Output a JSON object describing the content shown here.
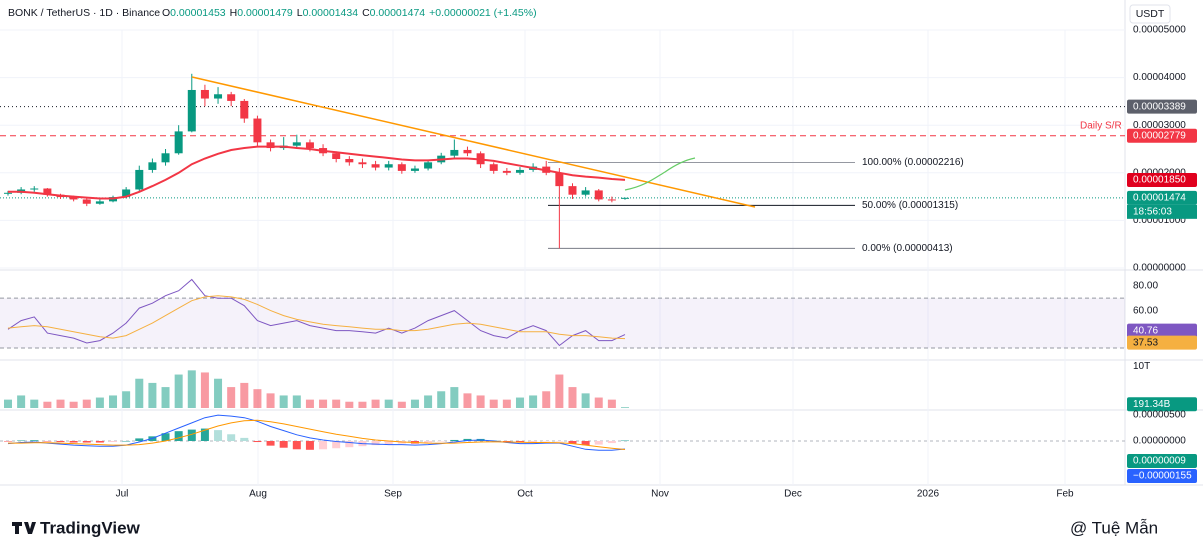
{
  "header": {
    "symbol": "BONK / TetherUS · 1D · Binance",
    "ohlc": [
      {
        "k": "O",
        "v": "0.00001453"
      },
      {
        "k": "H",
        "v": "0.00001479"
      },
      {
        "k": "L",
        "v": "0.00001434"
      },
      {
        "k": "C",
        "v": "0.00001474"
      }
    ],
    "change": "+0.00000021 (+1.45%)"
  },
  "currency": "USDT",
  "time_axis": [
    "Jul",
    "Aug",
    "Sep",
    "Oct",
    "Nov",
    "Dec",
    "2026",
    "Feb"
  ],
  "footer": {
    "logo": "TradingView",
    "watermark": "@ Tuệ Mẫn"
  },
  "chart_data": [
    {
      "type": "candlestick",
      "up_color": "#089981",
      "down_color": "#f23645",
      "open": [
        1.58e-05,
        1.58e-05,
        1.65e-05,
        1.67e-05,
        1.54e-05,
        1.49e-05,
        1.44e-05,
        1.35e-05,
        1.4e-05,
        1.49e-05,
        1.65e-05,
        2.06e-05,
        2.22e-05,
        2.41e-05,
        2.87e-05,
        3.74e-05,
        3.56e-05,
        3.65e-05,
        3.51e-05,
        3.14e-05,
        2.64e-05,
        2.52e-05,
        2.57e-05,
        2.64e-05,
        2.52e-05,
        2.41e-05,
        2.29e-05,
        2.22e-05,
        2.18e-05,
        2.11e-05,
        2.18e-05,
        2.04e-05,
        2.09e-05,
        2.22e-05,
        2.36e-05,
        2.48e-05,
        2.41e-05,
        2.18e-05,
        2.04e-05,
        2e-05,
        2.06e-05,
        2.13e-05,
        2e-05,
        1.72e-05,
        1.54e-05,
        1.63e-05,
        1.44e-05,
        1.453e-05
      ],
      "high": [
        1.62e-05,
        1.7e-05,
        1.72e-05,
        1.68e-05,
        1.56e-05,
        1.52e-05,
        1.46e-05,
        1.44e-05,
        1.52e-05,
        1.7e-05,
        2.15e-05,
        2.3e-05,
        2.5e-05,
        3e-05,
        4.08e-05,
        3.85e-05,
        3.8e-05,
        3.7e-05,
        3.55e-05,
        3.2e-05,
        2.7e-05,
        2.75e-05,
        2.8e-05,
        2.7e-05,
        2.6e-05,
        2.45e-05,
        2.35e-05,
        2.3e-05,
        2.25e-05,
        2.25e-05,
        2.22e-05,
        2.15e-05,
        2.28e-05,
        2.42e-05,
        2.7e-05,
        2.55e-05,
        2.45e-05,
        2.22e-05,
        2.1e-05,
        2.12e-05,
        2.2e-05,
        2.25e-05,
        2.1e-05,
        1.78e-05,
        1.7e-05,
        1.66e-05,
        1.5e-05,
        1.479e-05
      ],
      "low": [
        1.52e-05,
        1.55e-05,
        1.6e-05,
        1.5e-05,
        1.45e-05,
        1.4e-05,
        1.3e-05,
        1.33e-05,
        1.38e-05,
        1.46e-05,
        1.62e-05,
        2e-05,
        2.15e-05,
        2.38e-05,
        2.85e-05,
        3.4e-05,
        3.45e-05,
        3.4e-05,
        3.05e-05,
        2.55e-05,
        2.45e-05,
        2.48e-05,
        2.5e-05,
        2.45e-05,
        2.35e-05,
        2.22e-05,
        2.15e-05,
        2.1e-05,
        2.05e-05,
        2.05e-05,
        1.98e-05,
        2e-05,
        2.05e-05,
        2.18e-05,
        2.3e-05,
        2.35e-05,
        2.1e-05,
        1.98e-05,
        1.95e-05,
        1.96e-05,
        2.02e-05,
        1.95e-05,
        4.13e-06,
        1.45e-05,
        1.5e-05,
        1.4e-05,
        1.38e-05,
        1.434e-05
      ],
      "close": [
        1.58e-05,
        1.65e-05,
        1.67e-05,
        1.54e-05,
        1.49e-05,
        1.44e-05,
        1.35e-05,
        1.4e-05,
        1.49e-05,
        1.65e-05,
        2.06e-05,
        2.22e-05,
        2.41e-05,
        2.87e-05,
        3.74e-05,
        3.56e-05,
        3.65e-05,
        3.51e-05,
        3.14e-05,
        2.64e-05,
        2.52e-05,
        2.57e-05,
        2.64e-05,
        2.52e-05,
        2.41e-05,
        2.29e-05,
        2.22e-05,
        2.18e-05,
        2.11e-05,
        2.18e-05,
        2.04e-05,
        2.09e-05,
        2.22e-05,
        2.36e-05,
        2.48e-05,
        2.41e-05,
        2.18e-05,
        2.04e-05,
        2e-05,
        2.06e-05,
        2.13e-05,
        2e-05,
        1.72e-05,
        1.54e-05,
        1.63e-05,
        1.44e-05,
        1.42e-05,
        1.474e-05
      ],
      "ma": {
        "color": "#f23645",
        "values": [
          1.6e-05,
          1.6e-05,
          1.58e-05,
          1.55e-05,
          1.52e-05,
          1.5e-05,
          1.48e-05,
          1.46e-05,
          1.46e-05,
          1.5e-05,
          1.6e-05,
          1.72e-05,
          1.85e-05,
          2e-05,
          2.18e-05,
          2.3e-05,
          2.4e-05,
          2.48e-05,
          2.52e-05,
          2.55e-05,
          2.55e-05,
          2.55e-05,
          2.52e-05,
          2.5e-05,
          2.46e-05,
          2.43e-05,
          2.4e-05,
          2.37e-05,
          2.34e-05,
          2.31e-05,
          2.28e-05,
          2.26e-05,
          2.26e-05,
          2.28e-05,
          2.3e-05,
          2.3e-05,
          2.28e-05,
          2.25e-05,
          2.2e-05,
          2.15e-05,
          2.1e-05,
          2.05e-05,
          2e-05,
          1.95e-05,
          1.92e-05,
          1.9e-05,
          1.87e-05,
          1.85e-05
        ]
      },
      "ylim": [
        0,
        5e-05
      ],
      "yticks": [
        {
          "value": 5e-05,
          "label": "0.00005000"
        },
        {
          "value": 4e-05,
          "label": "0.00004000"
        },
        {
          "value": 3e-05,
          "label": "0.00003000"
        },
        {
          "value": 2e-05,
          "label": "0.00002000"
        },
        {
          "value": 1e-05,
          "label": "0.00001000"
        },
        {
          "value": 0,
          "label": "0.00000000"
        }
      ],
      "grid": true,
      "levels": [
        {
          "value": 3.389e-05,
          "color": "#131722",
          "dash": "1 3"
        },
        {
          "value": 2.779e-05,
          "color": "#f23645",
          "dash": "6 4"
        }
      ],
      "annotation": "Daily S/R",
      "fib": [
        {
          "value": 2.216e-05,
          "label": "100.00% (0.00002216)",
          "color": "#9598a1"
        },
        {
          "value": 1.315e-05,
          "label": "50.00% (0.00001315)",
          "color": "#131722"
        },
        {
          "value": 4.13e-06,
          "label": "0.00% (0.00000413)",
          "color": "#787b86"
        }
      ],
      "tags": [
        {
          "value": 3.389e-05,
          "label": "0.00003389",
          "color": "#5d606b"
        },
        {
          "value": 2.779e-05,
          "label": "0.00002779",
          "color": "#f23645"
        },
        {
          "value": 1.85e-05,
          "label": "0.00001850",
          "color": "#e0001e"
        },
        {
          "value": 1.474e-05,
          "label": "0.00001474",
          "color": "#089981"
        }
      ],
      "countdown": "18:56:03"
    },
    {
      "type": "line",
      "ylim": [
        22,
        91
      ],
      "yticks": [
        {
          "value": 80,
          "label": "80.00"
        },
        {
          "value": 60,
          "label": "60.00"
        }
      ],
      "band": [
        70,
        30
      ],
      "series": [
        {
          "color": "#7e57c2",
          "values": [
            45,
            52,
            55,
            42,
            40,
            38,
            34,
            36,
            42,
            50,
            62,
            66,
            72,
            76,
            85,
            72,
            70,
            70,
            64,
            52,
            48,
            50,
            52,
            48,
            46,
            44,
            44,
            43,
            42,
            46,
            42,
            46,
            52,
            56,
            60,
            52,
            44,
            40,
            38,
            44,
            48,
            44,
            32,
            40,
            44,
            36,
            36,
            40.76
          ]
        },
        {
          "color": "#f5b041",
          "values": [
            46,
            47,
            48,
            47,
            45,
            43,
            41,
            39,
            38,
            40,
            45,
            50,
            56,
            62,
            68,
            71,
            72,
            71,
            69,
            65,
            60,
            56,
            53,
            51,
            49,
            48,
            47,
            46,
            45,
            45,
            44,
            44,
            45,
            47,
            49,
            50,
            49,
            47,
            45,
            43,
            43,
            43,
            41,
            40,
            40,
            39,
            38,
            37.53
          ]
        }
      ]
    },
    {
      "type": "bar",
      "ylim": [
        0,
        11000000000000
      ],
      "yticks": [
        {
          "value": 10000000000000,
          "label": "10T"
        }
      ],
      "values": [
        2000000000000.0,
        3000000000000.0,
        2000000000000.0,
        1500000000000.0,
        2000000000000.0,
        1500000000000.0,
        2000000000000.0,
        2500000000000.0,
        3000000000000.0,
        4000000000000.0,
        7000000000000.0,
        6000000000000.0,
        5000000000000.0,
        8000000000000.0,
        9000000000000.0,
        8500000000000.0,
        7000000000000.0,
        5000000000000.0,
        6000000000000.0,
        4500000000000.0,
        3500000000000.0,
        3000000000000.0,
        3000000000000.0,
        2000000000000.0,
        2000000000000.0,
        2000000000000.0,
        1500000000000.0,
        1500000000000.0,
        2000000000000.0,
        2000000000000.0,
        1500000000000.0,
        2000000000000.0,
        3000000000000.0,
        4000000000000.0,
        5000000000000.0,
        3500000000000.0,
        3000000000000.0,
        2000000000000.0,
        2000000000000.0,
        2500000000000.0,
        3000000000000.0,
        4000000000000.0,
        8000000000000.0,
        5000000000000.0,
        3500000000000.0,
        2500000000000.0,
        2000000000000.0,
        191340000000
      ],
      "tag": {
        "value": 191340000000,
        "label": "191.34B"
      }
    },
    {
      "type": "macd",
      "ylim": [
        -8.5e-06,
        5.6e-06
      ],
      "yticks": [
        {
          "value": 5e-06,
          "label": "0.00000500"
        },
        {
          "value": 0,
          "label": "0.00000000"
        }
      ],
      "macd": {
        "color": "#2962ff",
        "values": [
          -5e-07,
          -3e-07,
          -2e-07,
          -4e-07,
          -6e-07,
          -8e-07,
          -9e-07,
          -1e-06,
          -1e-06,
          -8e-07,
          -2e-07,
          5e-07,
          1.5e-06,
          2.5e-06,
          3.5e-06,
          4.5e-06,
          5e-06,
          4.8e-06,
          4.5e-06,
          3.8e-06,
          2.8e-06,
          2e-06,
          1.2e-06,
          6e-07,
          2e-07,
          -1e-07,
          -3e-07,
          -5e-07,
          -6e-07,
          -7e-07,
          -7e-07,
          -8e-07,
          -7e-07,
          -5e-07,
          -2e-07,
          1e-07,
          2e-07,
          0,
          -3e-07,
          -5e-07,
          -5e-07,
          -4e-07,
          -4e-07,
          -1e-06,
          -1.6e-06,
          -1.8e-06,
          -1.8e-06,
          -1.55e-06
        ]
      },
      "signal": {
        "color": "#ff9800",
        "values": [
          -4e-07,
          -4e-07,
          -3.5e-07,
          -3.5e-07,
          -4e-07,
          -5e-07,
          -6e-07,
          -7e-07,
          -8e-07,
          -8e-07,
          -7e-07,
          -4e-07,
          0,
          6e-07,
          1.3e-06,
          2.1e-06,
          2.9e-06,
          3.5e-06,
          3.9e-06,
          4e-06,
          3.7e-06,
          3.3e-06,
          2.8e-06,
          2.3e-06,
          1.8e-06,
          1.3e-06,
          9e-07,
          5e-07,
          2e-07,
          0,
          -2e-07,
          -3e-07,
          -4e-07,
          -4.5e-07,
          -4e-07,
          -3e-07,
          -2e-07,
          -1.5e-07,
          -2e-07,
          -2.5e-07,
          -3e-07,
          -3e-07,
          -3.5e-07,
          -5e-07,
          -8e-07,
          -1.1e-06,
          -1.4e-06,
          -1.64e-06
        ]
      },
      "histogram": {
        "colors": [
          "#26a69a",
          "#b2dfdb",
          "#ff5252",
          "#ffcdd2"
        ],
        "values": [
          -1e-07,
          1e-07,
          1.5e-07,
          -5e-08,
          -2e-07,
          -3e-07,
          -3e-07,
          -3e-07,
          -2e-07,
          0,
          5e-07,
          9e-07,
          1.5e-06,
          1.9e-06,
          2.2e-06,
          2.4e-06,
          2.1e-06,
          1.3e-06,
          6e-07,
          -2e-07,
          -9e-07,
          -1.3e-06,
          -1.6e-06,
          -1.7e-06,
          -1.6e-06,
          -1.4e-06,
          -1.2e-06,
          -1e-06,
          -8e-07,
          -7e-07,
          -5e-07,
          -5e-07,
          -3e-07,
          -5e-08,
          2e-07,
          4e-07,
          4e-07,
          1.5e-07,
          -1e-07,
          -2.5e-07,
          -2e-07,
          -1e-07,
          -5e-08,
          -5e-07,
          -8e-07,
          -7e-07,
          -4e-07,
          9e-08
        ]
      },
      "tags": [
        {
          "value": 9e-08,
          "label": "0.00000009",
          "color": "#089981"
        },
        {
          "value": -1.55e-06,
          "label": "−0.00000155",
          "color": "#2962ff"
        }
      ]
    }
  ]
}
